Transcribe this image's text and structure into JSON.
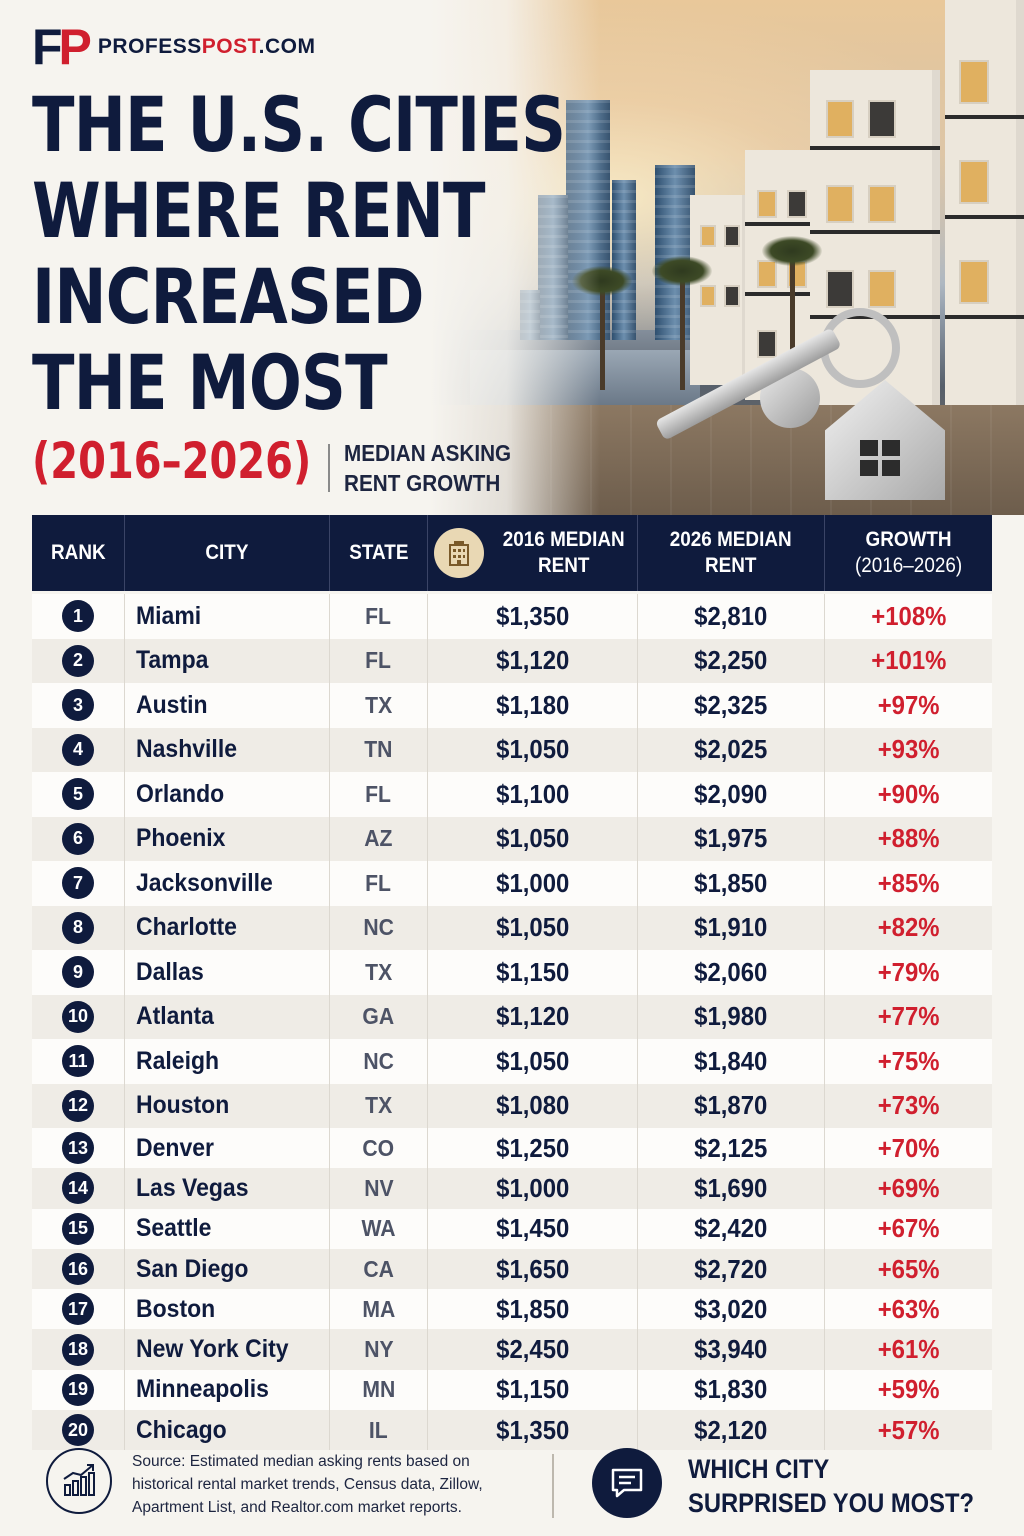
{
  "brand": {
    "logo_f": "F",
    "logo_p": "P",
    "site_a": "PROFESS",
    "site_b": "POST",
    "site_c": ".COM"
  },
  "headline": {
    "lines": [
      "THE U.S. CITIES",
      "WHERE RENT",
      "INCREASED",
      "THE MOST"
    ],
    "years": "(2016–2026)",
    "subtitle_1": "MEDIAN ASKING",
    "subtitle_2": "RENT GROWTH"
  },
  "colors": {
    "navy": "#0f1b3d",
    "red": "#d01f2e",
    "background": "#f6f4ef"
  },
  "table": {
    "headers": {
      "rank": "RANK",
      "city": "CITY",
      "state": "STATE",
      "rent_2016_1": "2016 MEDIAN",
      "rent_2016_2": "RENT",
      "rent_2026_1": "2026 MEDIAN",
      "rent_2026_2": "RENT",
      "growth_1": "GROWTH",
      "growth_2": "(2016–2026)",
      "rent_2016_icon": "building-icon"
    },
    "rows": [
      {
        "rank": "1",
        "city": "Miami",
        "state": "FL",
        "rent_2016": "$1,350",
        "rent_2026": "$2,810",
        "growth": "+108%"
      },
      {
        "rank": "2",
        "city": "Tampa",
        "state": "FL",
        "rent_2016": "$1,120",
        "rent_2026": "$2,250",
        "growth": "+101%"
      },
      {
        "rank": "3",
        "city": "Austin",
        "state": "TX",
        "rent_2016": "$1,180",
        "rent_2026": "$2,325",
        "growth": "+97%"
      },
      {
        "rank": "4",
        "city": "Nashville",
        "state": "TN",
        "rent_2016": "$1,050",
        "rent_2026": "$2,025",
        "growth": "+93%"
      },
      {
        "rank": "5",
        "city": "Orlando",
        "state": "FL",
        "rent_2016": "$1,100",
        "rent_2026": "$2,090",
        "growth": "+90%"
      },
      {
        "rank": "6",
        "city": "Phoenix",
        "state": "AZ",
        "rent_2016": "$1,050",
        "rent_2026": "$1,975",
        "growth": "+88%"
      },
      {
        "rank": "7",
        "city": "Jacksonville",
        "state": "FL",
        "rent_2016": "$1,000",
        "rent_2026": "$1,850",
        "growth": "+85%"
      },
      {
        "rank": "8",
        "city": "Charlotte",
        "state": "NC",
        "rent_2016": "$1,050",
        "rent_2026": "$1,910",
        "growth": "+82%"
      },
      {
        "rank": "9",
        "city": "Dallas",
        "state": "TX",
        "rent_2016": "$1,150",
        "rent_2026": "$2,060",
        "growth": "+79%"
      },
      {
        "rank": "10",
        "city": "Atlanta",
        "state": "GA",
        "rent_2016": "$1,120",
        "rent_2026": "$1,980",
        "growth": "+77%"
      },
      {
        "rank": "11",
        "city": "Raleigh",
        "state": "NC",
        "rent_2016": "$1,050",
        "rent_2026": "$1,840",
        "growth": "+75%"
      },
      {
        "rank": "12",
        "city": "Houston",
        "state": "TX",
        "rent_2016": "$1,080",
        "rent_2026": "$1,870",
        "growth": "+73%"
      },
      {
        "rank": "13",
        "city": "Denver",
        "state": "CO",
        "rent_2016": "$1,250",
        "rent_2026": "$2,125",
        "growth": "+70%"
      },
      {
        "rank": "14",
        "city": "Las Vegas",
        "state": "NV",
        "rent_2016": "$1,000",
        "rent_2026": "$1,690",
        "growth": "+69%"
      },
      {
        "rank": "15",
        "city": "Seattle",
        "state": "WA",
        "rent_2016": "$1,450",
        "rent_2026": "$2,420",
        "growth": "+67%"
      },
      {
        "rank": "16",
        "city": "San Diego",
        "state": "CA",
        "rent_2016": "$1,650",
        "rent_2026": "$2,720",
        "growth": "+65%"
      },
      {
        "rank": "17",
        "city": "Boston",
        "state": "MA",
        "rent_2016": "$1,850",
        "rent_2026": "$3,020",
        "growth": "+63%"
      },
      {
        "rank": "18",
        "city": "New York City",
        "state": "NY",
        "rent_2016": "$2,450",
        "rent_2026": "$3,940",
        "growth": "+61%"
      },
      {
        "rank": "19",
        "city": "Minneapolis",
        "state": "MN",
        "rent_2016": "$1,150",
        "rent_2026": "$1,830",
        "growth": "+59%"
      },
      {
        "rank": "20",
        "city": "Chicago",
        "state": "IL",
        "rent_2016": "$1,350",
        "rent_2026": "$2,120",
        "growth": "+57%"
      }
    ]
  },
  "footer": {
    "source_icon": "growth-chart-icon",
    "source": "Source: Estimated median asking rents based on historical rental market trends, Census data, Zillow, Apartment List, and Realtor.com market reports.",
    "cta_icon": "chat-bubble-icon",
    "cta_1": "WHICH CITY",
    "cta_2": "SURPRISED YOU MOST?"
  }
}
